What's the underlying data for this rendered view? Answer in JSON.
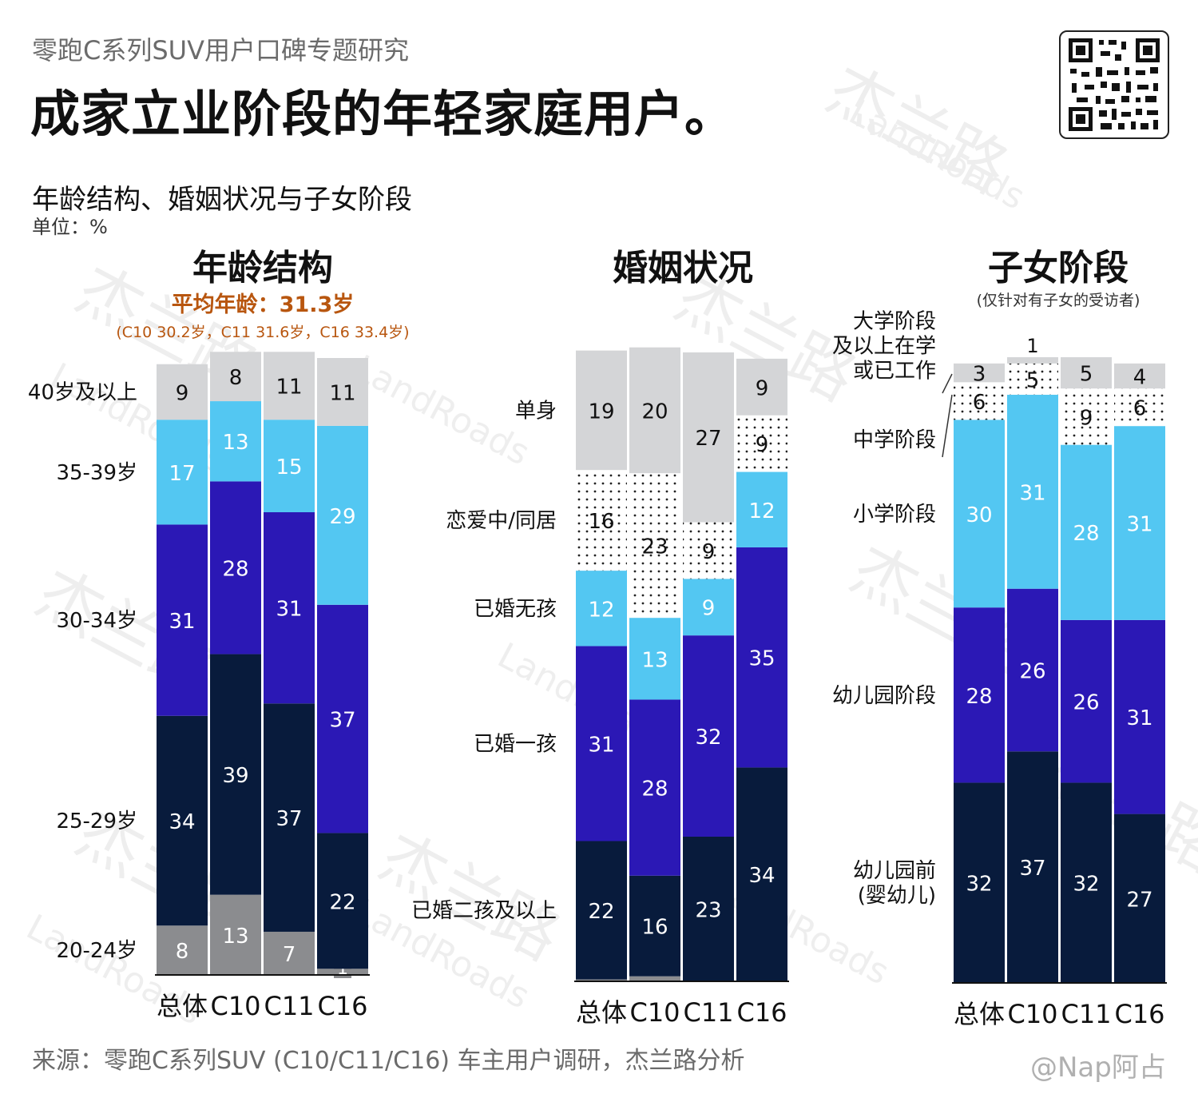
{
  "header": {
    "subtitle": "零跑C系列SUV用户口碑专题研究",
    "title": "成家立业阶段的年轻家庭用户。"
  },
  "section": {
    "title": "年龄结构、婚姻状况与子女阶段",
    "unit": "单位：%"
  },
  "watermark": {
    "cn": "杰兰路",
    "en": "LandRoads"
  },
  "footer": {
    "source": "来源：零跑C系列SUV (C10/C11/C16) 车主用户调研，杰兰路分析",
    "credit": "@Nap阿占"
  },
  "qr_icon": "qr-code-icon",
  "colors": {
    "navy": "#081b3c",
    "indigo": "#2b18b5",
    "sky": "#53c7f2",
    "light_gray": "#d4d5d7",
    "mid_gray": "#8b8c8f",
    "dots": "#ffffff",
    "accent": "#b8560f"
  },
  "chart_data": [
    {
      "type": "bar",
      "stacked": true,
      "title": "年龄结构",
      "note": "平均年龄：31.3岁",
      "note2": "(C10 30.2岁，C11 31.6岁，C16 33.4岁)",
      "categories": [
        "总体",
        "C10",
        "C11",
        "C16"
      ],
      "series": [
        {
          "name": "20-24岁",
          "values": [
            8,
            13,
            7,
            1
          ],
          "fill": "mid_gray"
        },
        {
          "name": "25-29岁",
          "values": [
            34,
            39,
            37,
            22
          ],
          "fill": "navy"
        },
        {
          "name": "30-34岁",
          "values": [
            31,
            28,
            31,
            37
          ],
          "fill": "indigo"
        },
        {
          "name": "35-39岁",
          "values": [
            17,
            13,
            15,
            29
          ],
          "fill": "sky"
        },
        {
          "name": "40岁及以上",
          "values": [
            9,
            8,
            11,
            11
          ],
          "fill": "light_gray"
        }
      ]
    },
    {
      "type": "bar",
      "stacked": true,
      "title": "婚姻状况",
      "categories": [
        "总体",
        "C10",
        "C11",
        "C16"
      ],
      "series": [
        {
          "name": "",
          "values": [
            0.3,
            0.8,
            0,
            0
          ],
          "fill": "mid_gray",
          "labels": [
            "",
            "",
            "",
            ""
          ]
        },
        {
          "name": "已婚二孩及以上",
          "values": [
            22,
            16,
            23,
            34
          ],
          "fill": "navy"
        },
        {
          "name": "已婚一孩",
          "values": [
            31,
            28,
            32,
            35
          ],
          "fill": "indigo"
        },
        {
          "name": "已婚无孩",
          "values": [
            12,
            13,
            9,
            12
          ],
          "fill": "sky"
        },
        {
          "name": "恋爱中/同居",
          "values": [
            16,
            23,
            9,
            9
          ],
          "fill": "dots"
        },
        {
          "name": "单身",
          "values": [
            19,
            20,
            27,
            9
          ],
          "fill": "light_gray"
        }
      ]
    },
    {
      "type": "bar",
      "stacked": true,
      "title": "子女阶段",
      "note": "(仅针对有子女的受访者)",
      "categories": [
        "总体",
        "C10",
        "C11",
        "C16"
      ],
      "series": [
        {
          "name": "幼儿园前\n(婴幼儿)",
          "values": [
            32,
            37,
            32,
            27
          ],
          "fill": "navy"
        },
        {
          "name": "幼儿园阶段",
          "values": [
            28,
            26,
            26,
            31
          ],
          "fill": "indigo"
        },
        {
          "name": "小学阶段",
          "values": [
            30,
            31,
            28,
            31
          ],
          "fill": "sky"
        },
        {
          "name": "中学阶段",
          "values": [
            6,
            5,
            9,
            6
          ],
          "fill": "dots"
        },
        {
          "name": "大学阶段\n及以上在学\n或已工作",
          "values": [
            3,
            1,
            5,
            4
          ],
          "fill": "light_gray"
        }
      ]
    }
  ]
}
